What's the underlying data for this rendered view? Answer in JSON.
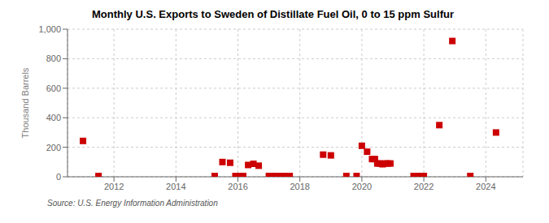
{
  "chart_data": {
    "type": "scatter",
    "title": "Monthly U.S. Exports to Sweden of Distillate Fuel Oil, 0 to 15 ppm Sulfur",
    "ylabel": "Thousand Barrels",
    "annotations": [
      "Source: U.S. Energy Information Administration"
    ],
    "x": [
      2011.0,
      2011.5,
      2015.25,
      2015.5,
      2015.75,
      2015.92,
      2016.08,
      2016.17,
      2016.33,
      2016.5,
      2016.67,
      2017.0,
      2017.08,
      2017.17,
      2017.33,
      2017.5,
      2017.67,
      2018.75,
      2019.0,
      2019.5,
      2019.83,
      2020.0,
      2020.17,
      2020.33,
      2020.42,
      2020.5,
      2020.58,
      2020.67,
      2020.75,
      2020.83,
      2020.92,
      2021.67,
      2021.83,
      2021.92,
      2022.0,
      2022.5,
      2022.92,
      2023.5,
      2024.33
    ],
    "values": [
      243,
      5,
      5,
      100,
      95,
      5,
      5,
      5,
      80,
      88,
      75,
      5,
      5,
      5,
      5,
      5,
      5,
      150,
      145,
      5,
      5,
      210,
      170,
      120,
      120,
      90,
      90,
      85,
      90,
      90,
      90,
      5,
      5,
      5,
      5,
      350,
      920,
      5,
      300
    ],
    "color": "#cc0000",
    "marker": "square",
    "xlim": [
      2010.5,
      2025.2
    ],
    "xticks": [
      2012,
      2014,
      2016,
      2018,
      2020,
      2022,
      2024
    ],
    "ylim": [
      0,
      1000
    ],
    "yticks": [
      0,
      200,
      400,
      600,
      800,
      {
        "value": 1000,
        "label": "1,000"
      }
    ],
    "grid": true
  }
}
